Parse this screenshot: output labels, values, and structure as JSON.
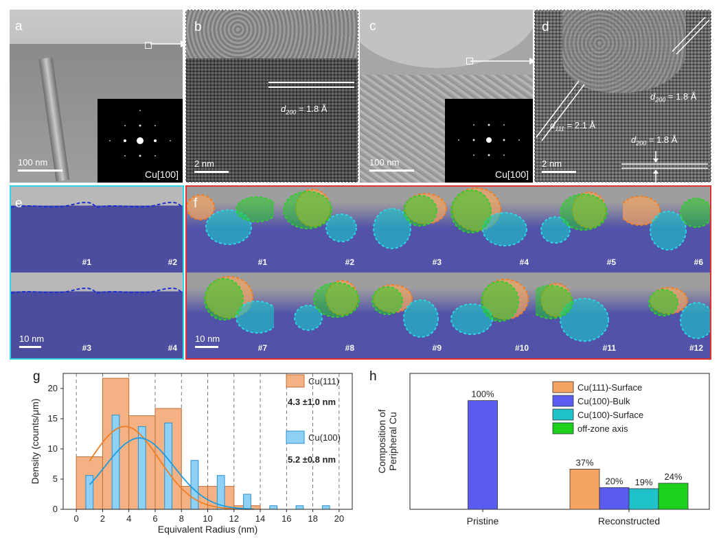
{
  "panels": {
    "a": {
      "label": "a",
      "scale": "100 nm",
      "saed": "Cu[100]"
    },
    "b": {
      "label": "b",
      "scale": "2 nm",
      "d_label": "d",
      "d_sub": "200",
      "d_val": " = 1.8 Å"
    },
    "c": {
      "label": "c",
      "scale": "100 nm",
      "saed": "Cu[100]"
    },
    "d": {
      "label": "d",
      "scale": "2 nm",
      "d1_label": "d",
      "d1_sub": "200",
      "d1_val": " = 1.8 Å",
      "d2_label": "d",
      "d2_sub": "111",
      "d2_val": " = 2.1 Å",
      "d3_label": "d",
      "d3_sub": "200",
      "d3_val": " = 1.8 Å"
    },
    "e": {
      "label": "e",
      "scale": "10 nm",
      "tiles": [
        "#1",
        "#2",
        "#3",
        "#4"
      ]
    },
    "f": {
      "label": "f",
      "scale": "10 nm",
      "tiles": [
        "#1",
        "#2",
        "#3",
        "#4",
        "#5",
        "#6",
        "#7",
        "#8",
        "#9",
        "#10",
        "#11",
        "#12"
      ]
    }
  },
  "chart_g": {
    "label": "g",
    "chart_data": {
      "type": "bar",
      "xlabel": "Equivalent Radius (nm)",
      "ylabel": "Density (counts/μm)",
      "xlim": [
        -1,
        21
      ],
      "ylim": [
        0,
        22.5
      ],
      "xticks": [
        0,
        2,
        4,
        6,
        8,
        10,
        12,
        14,
        16,
        18,
        20
      ],
      "yticks": [
        0,
        5,
        10,
        15,
        20
      ],
      "series": [
        {
          "name": "Cu(111)",
          "color": "#f4b183",
          "bins": [
            [
              0,
              2,
              8.7
            ],
            [
              2,
              4,
              21.7
            ],
            [
              4,
              6,
              15.5
            ],
            [
              6,
              8,
              16.7
            ],
            [
              8,
              10,
              3.8
            ],
            [
              10,
              12,
              3.8
            ],
            [
              12,
              14,
              0.6
            ]
          ],
          "fit_mean": 3.7,
          "fit_sd": 2.6,
          "fit_peak": 13.7,
          "fit_color": "#f07f23"
        },
        {
          "name": "Cu(100)",
          "color": "#8fd0f5",
          "bins": [
            [
              1,
              5.6
            ],
            [
              3,
              15.6
            ],
            [
              5,
              13.7
            ],
            [
              7,
              14.3
            ],
            [
              9,
              8.1
            ],
            [
              11,
              5.6
            ],
            [
              13,
              2.5
            ],
            [
              15,
              0.6
            ],
            [
              17,
              0.6
            ],
            [
              19,
              0.6
            ]
          ],
          "fit_mean": 4.8,
          "fit_sd": 2.6,
          "fit_peak": 11.8,
          "fit_color": "#1e9be0"
        }
      ],
      "annotations": [
        {
          "text": "4.3 ±1.0 nm",
          "color": "#f07f23"
        },
        {
          "text": "5.2 ±0.8 nm",
          "color": "#1e9be0"
        }
      ]
    }
  },
  "chart_h": {
    "label": "h",
    "chart_data": {
      "type": "bar",
      "ylabel": [
        "Composition of",
        "Peripheral Cu"
      ],
      "categories": [
        "Pristine",
        "Reconstructed"
      ],
      "series": [
        {
          "name": "Cu(111)-Surface",
          "color": "#f4a460",
          "values": [
            0,
            37
          ]
        },
        {
          "name": "Cu(100)-Bulk",
          "color": "#5b5bf0",
          "values": [
            100,
            20
          ]
        },
        {
          "name": "Cu(100)-Surface",
          "color": "#1fc2c8",
          "values": [
            0,
            19
          ]
        },
        {
          "name": "off-zone axis",
          "color": "#1ed01e",
          "values": [
            0,
            24
          ]
        }
      ],
      "value_labels": {
        "pristine": [
          "100%"
        ],
        "reconstructed": [
          "37%",
          "20%",
          "19%",
          "24%"
        ]
      },
      "ylim": [
        0,
        125
      ]
    }
  }
}
